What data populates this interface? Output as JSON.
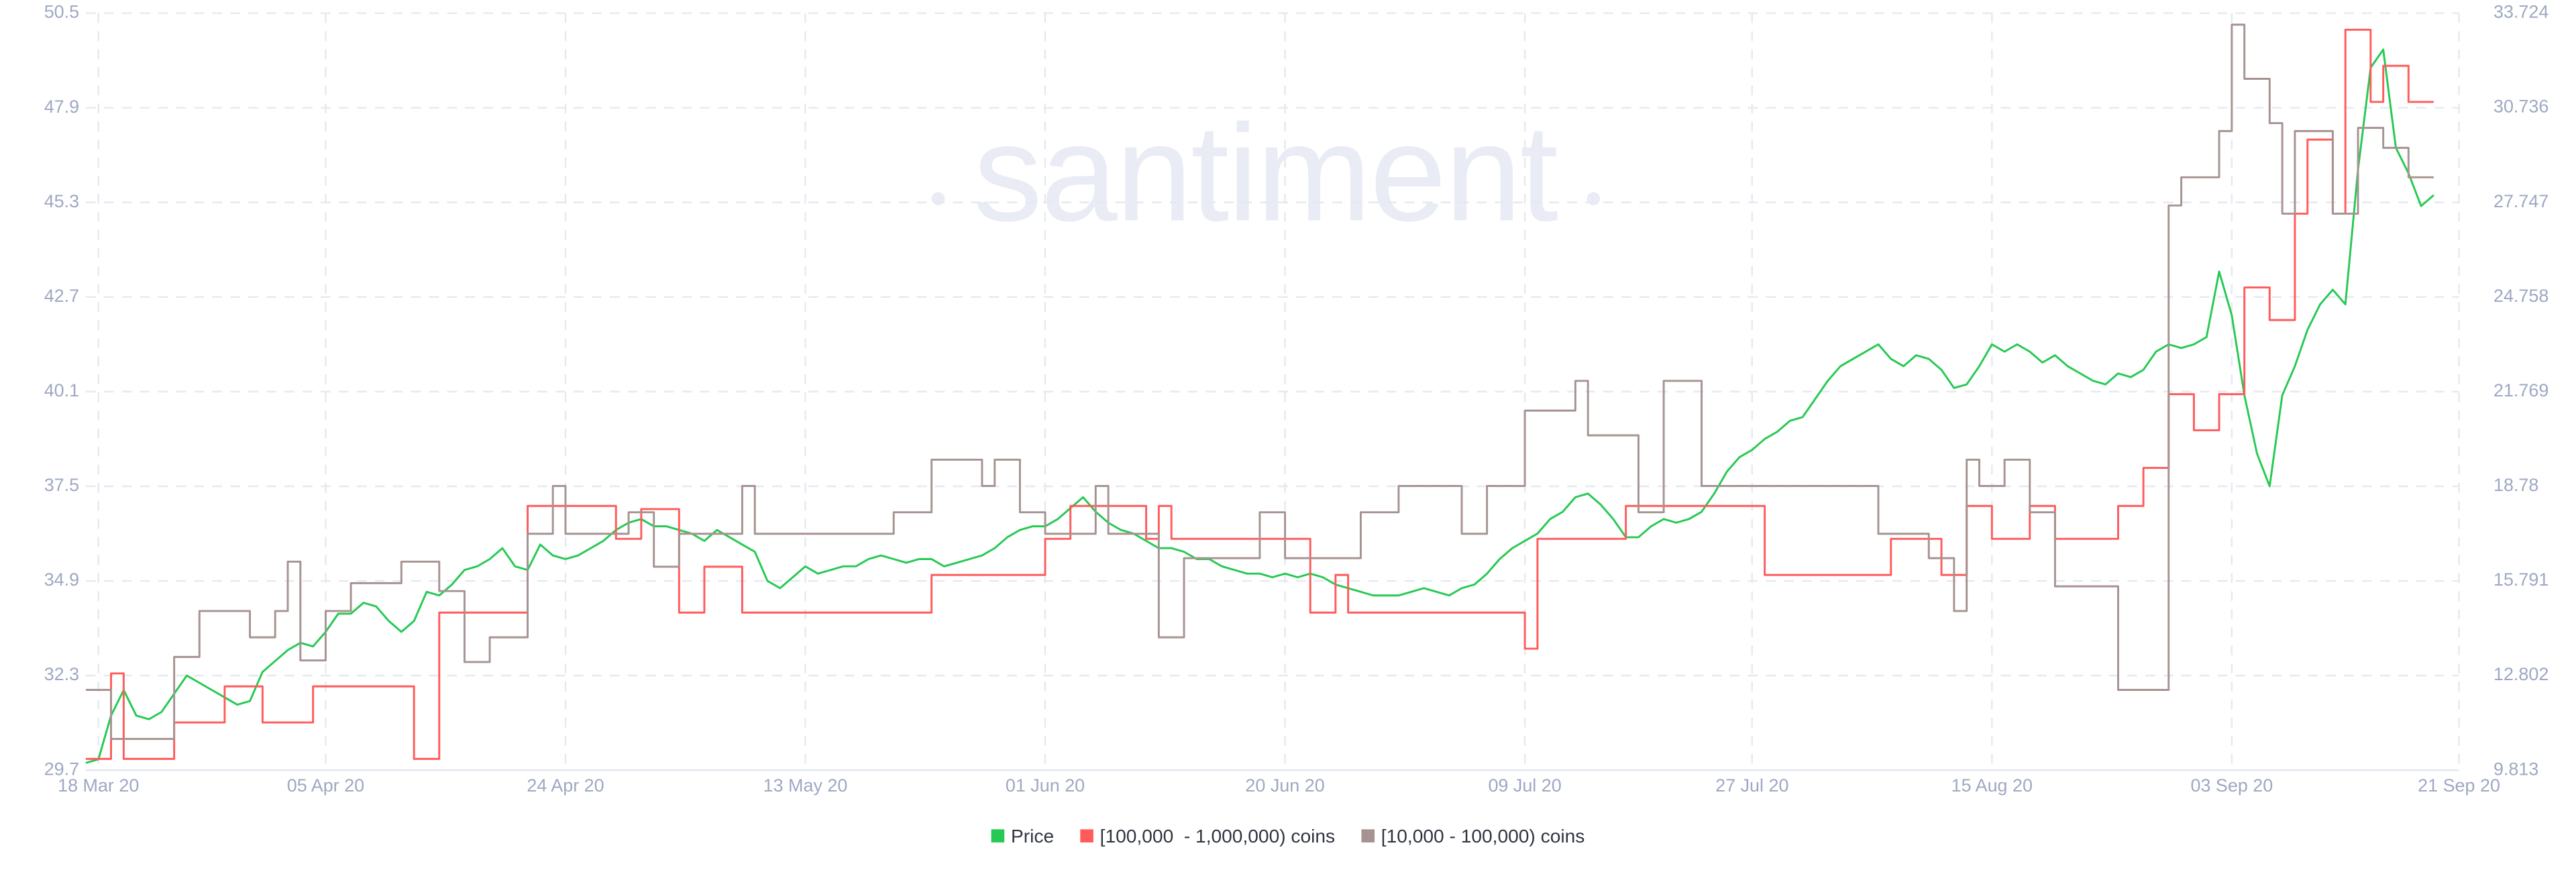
{
  "chart_data": {
    "type": "line",
    "watermark": "santiment",
    "categories": [
      null,
      "18 Mar 20",
      null,
      null,
      null,
      null,
      null,
      null,
      null,
      null,
      null,
      null,
      null,
      null,
      null,
      null,
      null,
      null,
      null,
      "05 Apr 20",
      null,
      null,
      null,
      null,
      null,
      null,
      null,
      null,
      null,
      null,
      null,
      null,
      null,
      null,
      null,
      null,
      null,
      null,
      "24 Apr 20",
      null,
      null,
      null,
      null,
      null,
      null,
      null,
      null,
      null,
      null,
      null,
      null,
      null,
      null,
      null,
      null,
      null,
      null,
      "13 May 20",
      null,
      null,
      null,
      null,
      null,
      null,
      null,
      null,
      null,
      null,
      null,
      null,
      null,
      null,
      null,
      null,
      null,
      null,
      "01 Jun 20",
      null,
      null,
      null,
      null,
      null,
      null,
      null,
      null,
      null,
      null,
      null,
      null,
      null,
      null,
      null,
      null,
      null,
      null,
      "20 Jun 20",
      null,
      null,
      null,
      null,
      null,
      null,
      null,
      null,
      null,
      null,
      null,
      null,
      null,
      null,
      null,
      null,
      null,
      null,
      "09 Jul 20",
      null,
      null,
      null,
      null,
      null,
      null,
      null,
      null,
      null,
      null,
      null,
      null,
      null,
      null,
      null,
      null,
      null,
      "27 Jul 20",
      null,
      null,
      null,
      null,
      null,
      null,
      null,
      null,
      null,
      null,
      null,
      null,
      null,
      null,
      null,
      null,
      null,
      null,
      "15 Aug 20",
      null,
      null,
      null,
      null,
      null,
      null,
      null,
      null,
      null,
      null,
      null,
      null,
      null,
      null,
      null,
      null,
      null,
      null,
      "03 Sep 20",
      null,
      null,
      null,
      null,
      null,
      null,
      null,
      null,
      null,
      null,
      null,
      null,
      null,
      null,
      null,
      null,
      null,
      "21 Sep 20"
    ],
    "series": [
      {
        "name": "Price",
        "color": "#26c953",
        "values": [
          29.9,
          30.0,
          31.2,
          31.9,
          31.2,
          31.1,
          31.3,
          31.8,
          32.3,
          32.1,
          31.9,
          31.7,
          31.5,
          31.6,
          32.4,
          32.7,
          33.0,
          33.2,
          33.1,
          33.5,
          34.0,
          34.0,
          34.3,
          34.2,
          33.8,
          33.5,
          33.8,
          34.6,
          34.5,
          34.8,
          35.2,
          35.3,
          35.5,
          35.8,
          35.3,
          35.2,
          35.9,
          35.6,
          35.5,
          35.6,
          35.8,
          36.0,
          36.3,
          36.5,
          36.6,
          36.4,
          36.4,
          36.3,
          36.2,
          36.0,
          36.3,
          36.1,
          35.9,
          35.7,
          34.9,
          34.7,
          35.0,
          35.3,
          35.1,
          35.2,
          35.3,
          35.3,
          35.5,
          35.6,
          35.5,
          35.4,
          35.5,
          35.5,
          35.3,
          35.4,
          35.5,
          35.6,
          35.8,
          36.1,
          36.3,
          36.4,
          36.4,
          36.6,
          36.9,
          37.2,
          36.8,
          36.5,
          36.3,
          36.2,
          36.0,
          35.8,
          35.8,
          35.7,
          35.5,
          35.5,
          35.3,
          35.2,
          35.1,
          35.1,
          35.0,
          35.1,
          35.0,
          35.1,
          35.0,
          34.8,
          34.7,
          34.6,
          34.5,
          34.5,
          34.5,
          34.6,
          34.7,
          34.6,
          34.5,
          34.7,
          34.8,
          35.1,
          35.5,
          35.8,
          36.0,
          36.2,
          36.6,
          36.8,
          37.2,
          37.3,
          37.0,
          36.6,
          36.1,
          36.1,
          36.4,
          36.6,
          36.5,
          36.6,
          36.8,
          37.3,
          37.9,
          38.3,
          38.5,
          38.8,
          39.0,
          39.3,
          39.4,
          39.9,
          40.4,
          40.8,
          41.0,
          41.2,
          41.4,
          41.0,
          40.8,
          41.1,
          41.0,
          40.7,
          40.2,
          40.3,
          40.8,
          41.4,
          41.2,
          41.4,
          41.2,
          40.9,
          41.1,
          40.8,
          40.6,
          40.4,
          40.3,
          40.6,
          40.5,
          40.7,
          41.2,
          41.4,
          41.3,
          41.4,
          41.6,
          43.4,
          42.2,
          40.0,
          38.4,
          37.5,
          40.0,
          40.8,
          41.8,
          42.5,
          42.9,
          42.5,
          46.2,
          49.0,
          49.5,
          46.8,
          46.1,
          45.2,
          45.5,
          null,
          null
        ]
      },
      {
        "name": "[100,000  - 1,000,000) coins",
        "color": "#ff5b5b",
        "axis": "y2",
        "step": true,
        "values": [
          10.17,
          10.17,
          12.87,
          10.17,
          10.17,
          10.17,
          10.17,
          11.32,
          11.32,
          11.32,
          11.32,
          12.46,
          12.46,
          12.46,
          11.32,
          11.32,
          11.32,
          11.32,
          12.46,
          12.46,
          12.46,
          12.46,
          12.46,
          12.46,
          12.46,
          12.46,
          10.17,
          10.17,
          14.79,
          14.79,
          14.79,
          14.79,
          14.79,
          14.79,
          14.79,
          18.16,
          18.16,
          18.16,
          18.16,
          18.16,
          18.16,
          18.16,
          17.12,
          17.12,
          18.06,
          18.06,
          18.06,
          14.79,
          14.79,
          16.24,
          16.24,
          16.24,
          14.79,
          14.79,
          14.79,
          14.79,
          14.79,
          14.79,
          14.79,
          14.79,
          14.79,
          14.79,
          14.79,
          14.79,
          14.79,
          14.79,
          14.79,
          15.98,
          15.98,
          15.98,
          15.98,
          15.98,
          15.98,
          15.98,
          15.98,
          15.98,
          17.12,
          17.12,
          18.16,
          18.16,
          18.16,
          18.16,
          18.16,
          18.16,
          17.12,
          18.16,
          17.12,
          17.12,
          17.12,
          17.12,
          17.12,
          17.12,
          17.12,
          17.12,
          17.12,
          17.12,
          17.12,
          14.79,
          14.79,
          15.98,
          14.79,
          14.79,
          14.79,
          14.79,
          14.79,
          14.79,
          14.79,
          14.79,
          14.79,
          14.79,
          14.79,
          14.79,
          14.79,
          14.79,
          13.65,
          17.12,
          17.12,
          17.12,
          17.12,
          17.12,
          17.12,
          17.12,
          18.16,
          18.16,
          18.16,
          18.16,
          18.16,
          18.16,
          18.16,
          18.16,
          18.16,
          18.16,
          18.16,
          15.98,
          15.98,
          15.98,
          15.98,
          15.98,
          15.98,
          15.98,
          15.98,
          15.98,
          15.98,
          17.12,
          17.12,
          17.12,
          17.12,
          15.98,
          15.98,
          18.16,
          18.16,
          17.12,
          17.12,
          17.12,
          18.16,
          18.16,
          17.12,
          17.12,
          17.12,
          17.12,
          17.12,
          18.16,
          18.16,
          19.36,
          19.36,
          21.69,
          21.69,
          20.55,
          20.55,
          21.69,
          21.69,
          25.06,
          25.06,
          24.03,
          24.03,
          27.39,
          29.73,
          29.73,
          27.39,
          33.2,
          33.2,
          30.92,
          32.06,
          32.06,
          30.92,
          30.92,
          30.92,
          null,
          null
        ]
      },
      {
        "name": "[10,000 - 100,000) coins",
        "color": "#a69391",
        "axis": "y2",
        "step": true,
        "values": [
          12.35,
          12.35,
          10.8,
          10.8,
          10.8,
          10.8,
          10.8,
          13.39,
          13.39,
          14.84,
          14.84,
          14.84,
          14.84,
          14.01,
          14.01,
          14.84,
          16.4,
          13.28,
          13.28,
          14.84,
          14.84,
          15.72,
          15.72,
          15.72,
          15.72,
          16.4,
          16.4,
          16.4,
          15.47,
          15.47,
          13.23,
          13.23,
          14.01,
          14.01,
          14.01,
          17.28,
          17.28,
          18.79,
          17.28,
          17.28,
          17.28,
          17.28,
          17.28,
          17.96,
          17.96,
          16.24,
          16.24,
          17.28,
          17.28,
          17.28,
          17.28,
          17.28,
          18.79,
          17.28,
          17.28,
          17.28,
          17.28,
          17.28,
          17.28,
          17.28,
          17.28,
          17.28,
          17.28,
          17.28,
          17.96,
          17.96,
          17.96,
          19.62,
          19.62,
          19.62,
          19.62,
          18.79,
          19.62,
          19.62,
          17.96,
          17.96,
          17.28,
          17.28,
          17.28,
          17.28,
          18.79,
          17.28,
          17.28,
          17.28,
          17.28,
          14.01,
          14.01,
          16.51,
          16.51,
          16.51,
          16.51,
          16.51,
          16.51,
          17.96,
          17.96,
          16.51,
          16.51,
          16.51,
          16.51,
          16.51,
          16.51,
          17.96,
          17.96,
          17.96,
          18.79,
          18.79,
          18.79,
          18.79,
          18.79,
          17.28,
          17.28,
          18.79,
          18.79,
          18.79,
          21.17,
          21.17,
          21.17,
          21.17,
          22.11,
          20.39,
          20.39,
          20.39,
          20.39,
          17.96,
          17.96,
          22.11,
          22.11,
          22.11,
          18.79,
          18.79,
          18.79,
          18.79,
          18.79,
          18.79,
          18.79,
          18.79,
          18.79,
          18.79,
          18.79,
          18.79,
          18.79,
          18.79,
          17.28,
          17.28,
          17.28,
          17.28,
          16.51,
          16.51,
          14.84,
          19.62,
          18.79,
          18.79,
          19.62,
          19.62,
          17.96,
          17.96,
          15.62,
          15.62,
          15.62,
          15.62,
          15.62,
          12.35,
          12.35,
          12.35,
          12.35,
          27.65,
          28.54,
          28.54,
          28.54,
          30.0,
          33.36,
          31.65,
          31.65,
          30.25,
          27.39,
          30.0,
          30.0,
          30.0,
          27.39,
          27.39,
          30.1,
          30.1,
          29.47,
          29.47,
          28.54,
          28.54,
          28.54,
          null,
          null
        ]
      }
    ],
    "ylim": [
      29.7,
      50.5
    ],
    "yticks": [
      29.7,
      32.3,
      34.9,
      37.5,
      40.1,
      42.7,
      45.3,
      47.9,
      50.5
    ],
    "y2lim": [
      9.813,
      33.724
    ],
    "y2ticks": [
      9.813,
      12.802,
      15.791,
      18.78,
      21.769,
      24.758,
      27.747,
      30.736,
      33.724
    ],
    "grid": true,
    "legend": "bottom"
  }
}
